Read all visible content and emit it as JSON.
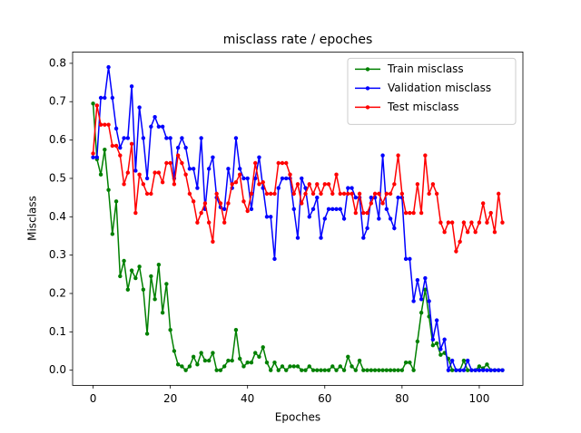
{
  "chart_data": {
    "type": "line",
    "title": "misclass rate / epoches",
    "x_label": "Epoches",
    "y_label": "Misclass",
    "x": [
      0,
      1,
      2,
      3,
      4,
      5,
      6,
      7,
      8,
      9,
      10,
      11,
      12,
      13,
      14,
      15,
      16,
      17,
      18,
      19,
      20,
      21,
      22,
      23,
      24,
      25,
      26,
      27,
      28,
      29,
      30,
      31,
      32,
      33,
      34,
      35,
      36,
      37,
      38,
      39,
      40,
      41,
      42,
      43,
      44,
      45,
      46,
      47,
      48,
      49,
      50,
      51,
      52,
      53,
      54,
      55,
      56,
      57,
      58,
      59,
      60,
      61,
      62,
      63,
      64,
      65,
      66,
      67,
      68,
      69,
      70,
      71,
      72,
      73,
      74,
      75,
      76,
      77,
      78,
      79,
      80,
      81,
      82,
      83,
      84,
      85,
      86,
      87,
      88,
      89,
      90,
      91,
      92,
      93,
      94,
      95,
      96,
      97,
      98,
      99,
      100,
      101,
      102,
      103,
      104,
      105,
      106
    ],
    "series": [
      {
        "name": "Train misclass",
        "color": "#008000",
        "values": [
          0.695,
          0.55,
          0.51,
          0.575,
          0.47,
          0.355,
          0.44,
          0.245,
          0.285,
          0.21,
          0.26,
          0.24,
          0.27,
          0.21,
          0.095,
          0.245,
          0.185,
          0.275,
          0.15,
          0.225,
          0.105,
          0.05,
          0.015,
          0.01,
          0.0,
          0.01,
          0.035,
          0.015,
          0.045,
          0.025,
          0.025,
          0.045,
          0.0,
          0.0,
          0.01,
          0.025,
          0.025,
          0.105,
          0.03,
          0.01,
          0.02,
          0.02,
          0.045,
          0.035,
          0.06,
          0.02,
          0.0,
          0.02,
          0.0,
          0.01,
          0.0,
          0.01,
          0.01,
          0.01,
          0.0,
          0.0,
          0.01,
          0.0,
          0,
          0,
          0,
          0,
          0.01,
          0.0,
          0.01,
          0.0,
          0.035,
          0.01,
          0,
          0.025,
          0,
          0,
          0,
          0,
          0,
          0,
          0,
          0,
          0,
          0,
          0,
          0.02,
          0.02,
          0.0,
          0.075,
          0.15,
          0.21,
          0.14,
          0.065,
          0.07,
          0.04,
          0.045,
          0.03,
          0,
          0,
          0,
          0.025,
          0,
          0,
          0,
          0.01,
          0.005,
          0.015,
          0,
          0,
          0,
          0
        ]
      },
      {
        "name": "Validation misclass",
        "color": "#0000ff",
        "values": [
          0.555,
          0.555,
          0.71,
          0.71,
          0.79,
          0.71,
          0.63,
          0.58,
          0.605,
          0.605,
          0.74,
          0.52,
          0.685,
          0.605,
          0.5,
          0.635,
          0.66,
          0.635,
          0.635,
          0.605,
          0.605,
          0.5,
          0.58,
          0.605,
          0.58,
          0.525,
          0.525,
          0.475,
          0.605,
          0.42,
          0.525,
          0.555,
          0.45,
          0.425,
          0.42,
          0.525,
          0.475,
          0.605,
          0.525,
          0.5,
          0.5,
          0.42,
          0.5,
          0.555,
          0.475,
          0.4,
          0.4,
          0.29,
          0.475,
          0.5,
          0.5,
          0.5,
          0.42,
          0.345,
          0.5,
          0.475,
          0.4,
          0.42,
          0.45,
          0.345,
          0.395,
          0.42,
          0.42,
          0.42,
          0.42,
          0.395,
          0.475,
          0.475,
          0.45,
          0.45,
          0.345,
          0.37,
          0.45,
          0.45,
          0.395,
          0.56,
          0.42,
          0.395,
          0.37,
          0.45,
          0.45,
          0.29,
          0.29,
          0.18,
          0.235,
          0.185,
          0.24,
          0.18,
          0.08,
          0.13,
          0.055,
          0.08,
          0.0,
          0.025,
          0.0,
          0.0,
          0.0,
          0.025,
          0.0,
          0,
          0,
          0,
          0,
          0,
          0,
          0,
          0
        ]
      },
      {
        "name": "Test misclass",
        "color": "#ff0000",
        "values": [
          0.565,
          0.69,
          0.64,
          0.64,
          0.64,
          0.585,
          0.585,
          0.56,
          0.485,
          0.515,
          0.59,
          0.41,
          0.51,
          0.485,
          0.46,
          0.46,
          0.515,
          0.515,
          0.49,
          0.54,
          0.54,
          0.485,
          0.56,
          0.54,
          0.51,
          0.46,
          0.44,
          0.385,
          0.41,
          0.435,
          0.385,
          0.335,
          0.46,
          0.435,
          0.385,
          0.435,
          0.485,
          0.49,
          0.51,
          0.44,
          0.415,
          0.46,
          0.54,
          0.485,
          0.49,
          0.46,
          0.46,
          0.46,
          0.54,
          0.54,
          0.54,
          0.51,
          0.46,
          0.485,
          0.435,
          0.46,
          0.485,
          0.46,
          0.485,
          0.46,
          0.485,
          0.485,
          0.46,
          0.51,
          0.46,
          0.46,
          0.46,
          0.46,
          0.41,
          0.46,
          0.41,
          0.41,
          0.435,
          0.46,
          0.46,
          0.435,
          0.46,
          0.46,
          0.485,
          0.56,
          0.46,
          0.41,
          0.41,
          0.41,
          0.485,
          0.41,
          0.56,
          0.46,
          0.485,
          0.46,
          0.385,
          0.36,
          0.385,
          0.385,
          0.31,
          0.335,
          0.385,
          0.36,
          0.385,
          0.36,
          0.385,
          0.435,
          0.385,
          0.41,
          0.36,
          0.46,
          0.385
        ]
      }
    ],
    "xlim": [
      -5.3,
      111.3
    ],
    "ylim": [
      -0.0395,
      0.8295
    ],
    "xticks": [
      0,
      20,
      40,
      60,
      80,
      100
    ],
    "yticks": [
      {
        "value": 0,
        "label": "0.0"
      },
      0.1,
      0.2,
      0.3,
      0.4,
      0.5,
      0.6,
      0.7,
      0.8
    ],
    "legend": "upper right"
  }
}
